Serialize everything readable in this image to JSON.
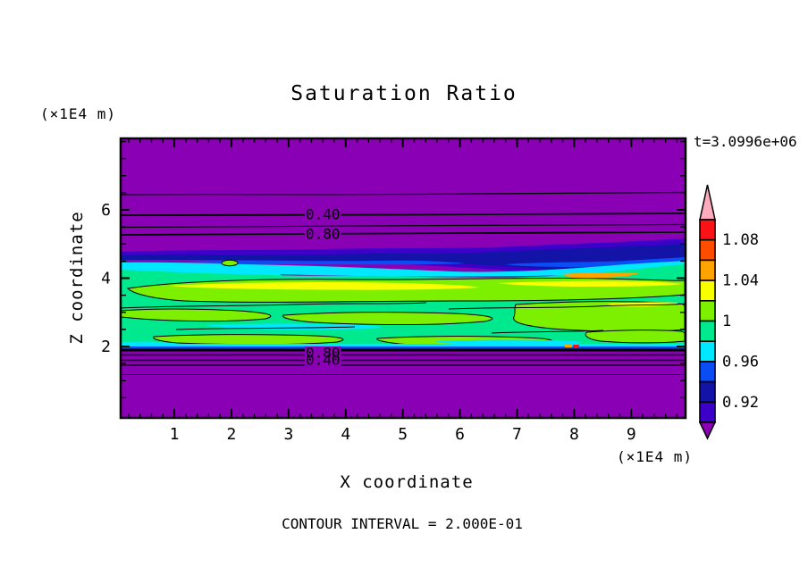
{
  "title": "Saturation Ratio",
  "colors": {
    "background": "#FFFFFF",
    "axis": "#000000",
    "purple": "#8A00B5",
    "indigo": "#3D00C9",
    "navy": "#1313A7",
    "blue": "#0B4DF5",
    "cyan": "#00E7FF",
    "springgreen": "#00E98E",
    "chartreuse": "#7DF000",
    "yellow": "#F8FF00",
    "orange": "#FFA300",
    "orangered": "#FF4D00",
    "red": "#FB1318",
    "pink": "#FFABBE"
  },
  "chart_data": {
    "type": "filled_contour",
    "title": "Saturation Ratio",
    "timestamp_label": "t=3.0996e+06",
    "contour_interval_label": "CONTOUR INTERVAL = 2.000E-01",
    "contour_interval_value": 0.2,
    "x_axis": {
      "label": "X coordinate",
      "units_label": "(×1E4 m)",
      "range": [
        0,
        10
      ],
      "major_ticks": [
        1,
        2,
        3,
        4,
        5,
        6,
        7,
        8,
        9
      ],
      "minor_step": 0.2
    },
    "z_axis": {
      "label": "Z coordinate",
      "units_label": "(×1E4 m)",
      "range": [
        0,
        8.1
      ],
      "major_ticks": [
        2,
        4,
        6
      ],
      "minor_step": 0.5
    },
    "colorbar": {
      "orientation": "vertical",
      "over": {
        "range_min": 1.1,
        "color": "#FFABBE"
      },
      "segments": [
        {
          "range": [
            1.08,
            1.1
          ],
          "color": "#FB1318"
        },
        {
          "range": [
            1.06,
            1.08
          ],
          "color": "#FF4D00"
        },
        {
          "range": [
            1.04,
            1.06
          ],
          "color": "#FFA300"
        },
        {
          "range": [
            1.02,
            1.04
          ],
          "color": "#F8FF00"
        },
        {
          "range": [
            1.0,
            1.02
          ],
          "color": "#7DF000"
        },
        {
          "range": [
            0.98,
            1.0
          ],
          "color": "#00E98E"
        },
        {
          "range": [
            0.96,
            0.98
          ],
          "color": "#00E7FF"
        },
        {
          "range": [
            0.94,
            0.96
          ],
          "color": "#0B4DF5"
        },
        {
          "range": [
            0.92,
            0.94
          ],
          "color": "#1313A7"
        },
        {
          "range": [
            0.9,
            0.92
          ],
          "color": "#3D00C9"
        }
      ],
      "under": {
        "range_max": 0.9,
        "color": "#8A00B5"
      },
      "labels": [
        {
          "text": "1.08",
          "boundary": 1
        },
        {
          "text": "1.04",
          "boundary": 3
        },
        {
          "text": "1",
          "boundary": 5
        },
        {
          "text": "0.96",
          "boundary": 7
        },
        {
          "text": "0.92",
          "boundary": 9
        }
      ]
    },
    "contour_line_labels": [
      {
        "text": "0.40",
        "x": 3.6,
        "z": 5.87,
        "masked": true
      },
      {
        "text": "0.80",
        "x": 3.6,
        "z": 5.29,
        "masked": true
      },
      {
        "text": "0.80",
        "x": 3.6,
        "z": 1.82,
        "masked": true
      },
      {
        "text": "0.40",
        "x": 3.6,
        "z": 1.61,
        "masked": true
      }
    ],
    "vertical_profile_approx": [
      {
        "z": 8.1,
        "s": 0.0
      },
      {
        "z": 6.6,
        "s": 0.2
      },
      {
        "z": 5.87,
        "s": 0.4
      },
      {
        "z": 5.5,
        "s": 0.6
      },
      {
        "z": 5.29,
        "s": 0.8
      },
      {
        "z": 4.9,
        "s": 0.9
      },
      {
        "z": 4.5,
        "s": 0.94
      },
      {
        "z": 4.2,
        "s": 0.98
      },
      {
        "z": 3.8,
        "s": 1.03
      },
      {
        "z": 3.0,
        "s": 1.01
      },
      {
        "z": 2.2,
        "s": 0.99
      },
      {
        "z": 2.0,
        "s": 0.9
      },
      {
        "z": 1.82,
        "s": 0.8
      },
      {
        "z": 1.61,
        "s": 0.4
      },
      {
        "z": 1.4,
        "s": 0.2
      },
      {
        "z": 0.0,
        "s": 0.0
      }
    ]
  }
}
